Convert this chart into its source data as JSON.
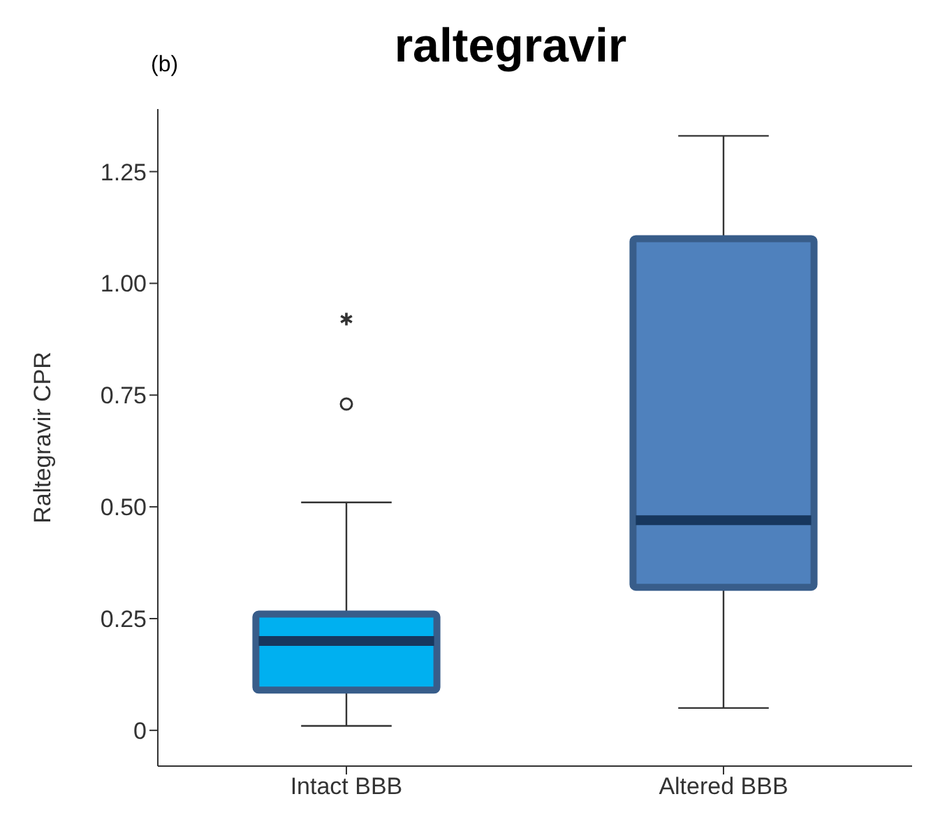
{
  "chart_data": {
    "type": "box",
    "title": "raltegravir",
    "ylabel": "Raltegravir CPR",
    "annotations": [
      "(b)"
    ],
    "categories": [
      "Intact BBB",
      "Altered BBB"
    ],
    "colors": [
      "#00b0f0",
      "#4f81bd"
    ],
    "boxes": [
      {
        "low": 0.01,
        "q1": 0.09,
        "median": 0.2,
        "q3": 0.26,
        "high": 0.51,
        "outliers": [
          0.73,
          0.92
        ]
      },
      {
        "low": 0.05,
        "q1": 0.32,
        "median": 0.47,
        "q3": 1.1,
        "high": 1.33
      }
    ],
    "ylim": [
      -0.08,
      1.39
    ],
    "yticks": [
      {
        "value": 0,
        "label": "0"
      },
      0.25,
      {
        "value": 0.5,
        "label": "0.50"
      },
      0.75,
      {
        "value": 1,
        "label": "1.00"
      },
      1.25
    ],
    "grid": false,
    "legend": false
  }
}
